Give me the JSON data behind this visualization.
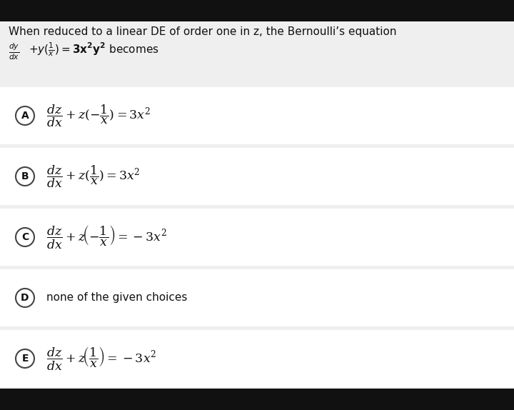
{
  "bg_color": "#111111",
  "panel_color": "#efefef",
  "option_box_color": "#ffffff",
  "gap_color": "#e0e0e0",
  "text_color": "#111111",
  "title_line1": "When reduced to a linear DE of order one in z, the Bernoulli’s equation",
  "options": [
    {
      "label": "A",
      "formula": "$\\dfrac{dz}{dx}+z(-\\dfrac{1}{x})=3x^2$"
    },
    {
      "label": "B",
      "formula": "$\\dfrac{dz}{dx}+z(\\dfrac{1}{x})=3x^2$"
    },
    {
      "label": "C",
      "formula": "$\\dfrac{dz}{dx}+z\\!\\left(-\\dfrac{1}{x}\\right)=-3x^2$"
    },
    {
      "label": "D",
      "formula": "none of the given choices"
    },
    {
      "label": "E",
      "formula": "$\\dfrac{dz}{dx}+z\\!\\left(\\dfrac{1}{x}\\right)=-3x^2$"
    }
  ],
  "figsize": [
    7.2,
    5.74
  ],
  "dpi": 100
}
